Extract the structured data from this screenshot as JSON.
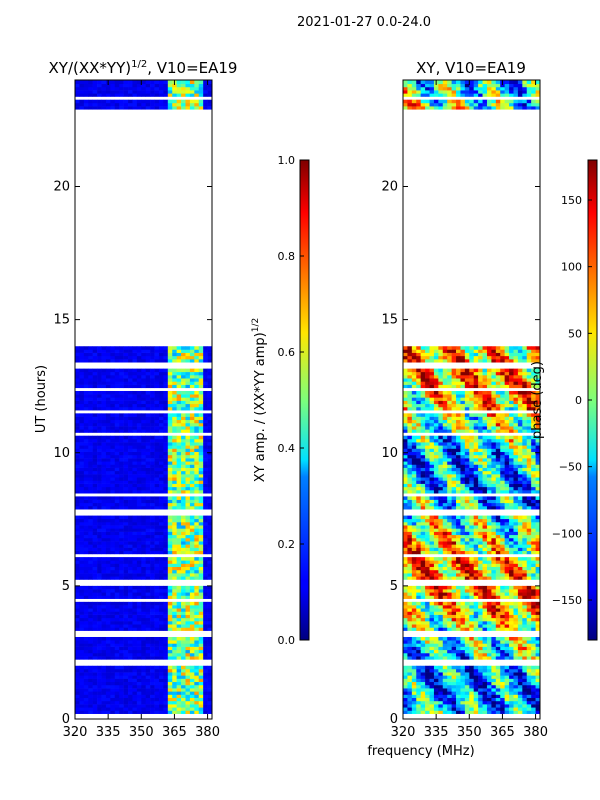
{
  "suptitle": "2021-01-27 0.0-24.0",
  "chart_data": [
    {
      "type": "heatmap",
      "title_main": "XY/(XX*YY)",
      "title_exp": "1/2",
      "title_tail": ", V10=EA19",
      "xlabel": "",
      "ylabel": "UT (hours)",
      "xlim": [
        320,
        382
      ],
      "ylim": [
        0,
        24
      ],
      "xticks": [
        320,
        335,
        350,
        365,
        380
      ],
      "yticks": [
        0,
        5,
        10,
        15,
        20
      ],
      "data_rows_hours": [
        [
          0.2,
          13.9
        ],
        [
          22.9,
          23.9
        ]
      ],
      "colorbar": {
        "label": "XY amp. / (XX*YY amp)",
        "label_exp": "1/2",
        "range": [
          0.0,
          1.0
        ],
        "ticks": [
          "0.0",
          "0.2",
          "0.4",
          "0.6",
          "0.8",
          "1.0"
        ],
        "tick_values": [
          0.0,
          0.2,
          0.4,
          0.6,
          0.8,
          1.0
        ],
        "colormap": "jet"
      }
    },
    {
      "type": "heatmap",
      "title": "XY, V10=EA19",
      "xlabel": "frequency (MHz)",
      "ylabel": "",
      "xlim": [
        320,
        382
      ],
      "ylim": [
        0,
        24
      ],
      "xticks": [
        320,
        335,
        350,
        365,
        380
      ],
      "yticks": [
        0,
        5,
        10,
        15,
        20
      ],
      "data_rows_hours": [
        [
          0.2,
          13.9
        ],
        [
          22.9,
          23.9
        ]
      ],
      "colorbar": {
        "label": "phase (deg)",
        "range": [
          -180,
          180
        ],
        "ticks": [
          "−150",
          "−100",
          "−50",
          "0",
          "50",
          "100",
          "150"
        ],
        "tick_values": [
          -150,
          -100,
          -50,
          0,
          50,
          100,
          150
        ],
        "colormap": "jet"
      }
    }
  ]
}
